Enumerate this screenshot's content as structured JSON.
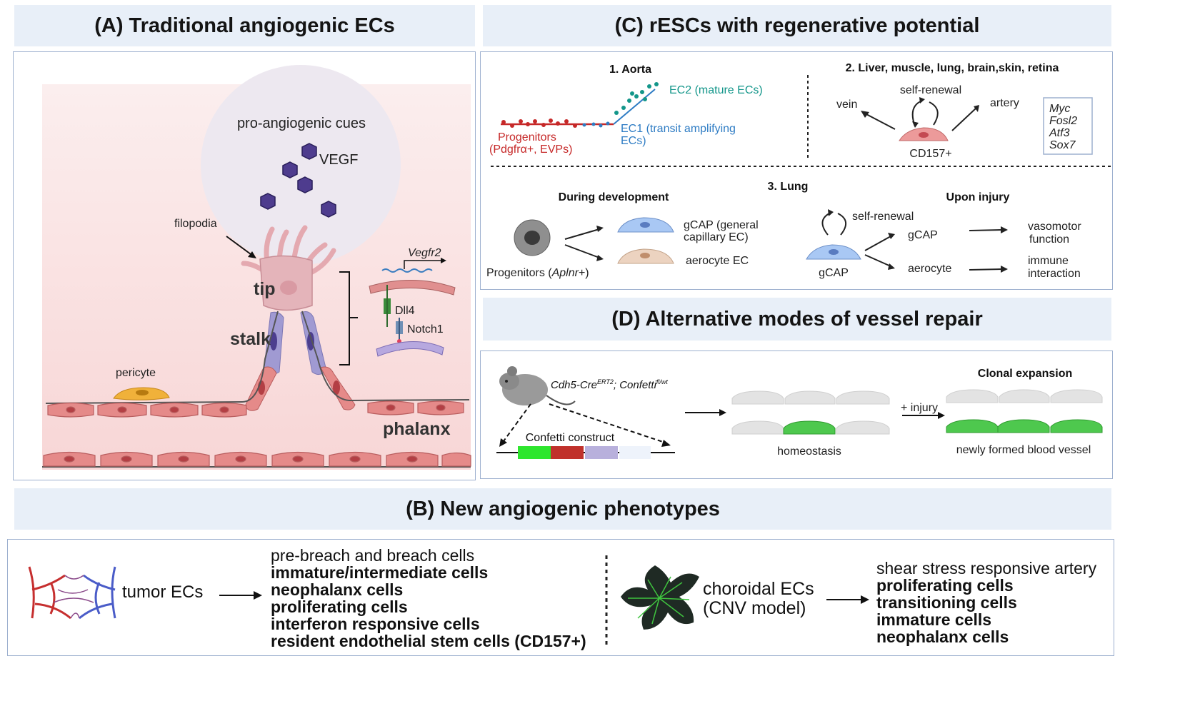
{
  "colors": {
    "header_bg": "#e8eff8",
    "box_border": "#9db0cf",
    "red_text": "#c62828",
    "blue_text": "#2e7cc4",
    "teal_text": "#13968a",
    "green": "#2ee62e",
    "pink_cell": "#e98d8c"
  },
  "panelA": {
    "title": "(A) Traditional angiogenic ECs",
    "cues": "pro-angiogenic cues",
    "vegf": "VEGF",
    "filopodia": "filopodia",
    "tip": "tip",
    "stalk": "stalk",
    "pericyte": "pericyte",
    "phalanx": "phalanx",
    "vegfr2": "Vegfr2",
    "dll4": "Dll4",
    "notch1": "Notch1"
  },
  "panelB": {
    "title": "(B) New angiogenic phenotypes",
    "left_label": "tumor ECs",
    "left_items": [
      "pre-breach and breach cells",
      "immature/intermediate cells",
      "neophalanx cells",
      "proliferating cells",
      "interferon responsive cells",
      "resident endothelial stem cells (CD157+)"
    ],
    "right_label_1": "choroidal ECs",
    "right_label_2": "(CNV model)",
    "right_items": [
      "shear stress responsive artery",
      "proliferating cells",
      "transitioning cells",
      "immature cells",
      "neophalanx cells"
    ]
  },
  "panelC": {
    "title": "(C) rESCs with regenerative potential",
    "aorta_title": "1.  Aorta",
    "ec2": "EC2 (mature ECs)",
    "ec1_l1": "EC1 (transit amplifying",
    "ec1_l2": "ECs)",
    "prog_l1": "Progenitors",
    "prog_l2": "(Pdgfrα+, EVPs)",
    "liver_title": "2. Liver, muscle, lung, brain,skin, retina",
    "self_renewal": "self-renewal",
    "vein": "vein",
    "artery": "artery",
    "cd157": "CD157+",
    "genes": [
      "Myc",
      "Fosl2",
      "Atf3",
      "Sox7"
    ],
    "lung_title": "3. Lung",
    "during_dev": "During development",
    "upon_injury": "Upon injury",
    "gcap_general_l1": "gCAP (general",
    "gcap_general_l2": "capillary  EC)",
    "aerocyte_ec": "aerocyte EC",
    "progenitors_prefix": "Progenitors (",
    "progenitors_gene": "Aplnr",
    "progenitors_suffix": "+)",
    "self_renewal_2": "self-renewal",
    "gcap": "gCAP",
    "gcap_bottom": "gCAP",
    "aerocyte": "aerocyte",
    "vasomotor_l1": "vasomotor",
    "vasomotor_l2": "function",
    "immune_l1": "immune",
    "immune_l2": "interaction"
  },
  "panelD": {
    "title": "(D) Alternative modes of vessel repair",
    "genotype_a": "Cdh5-Cre",
    "genotype_a_sup": "ERT2",
    "genotype_b": "; Confetti",
    "genotype_b_sup": "fl/wt",
    "construct": "Confetti construct",
    "homeostasis": "homeostasis",
    "injury": "+ injury",
    "clonal": "Clonal expansion",
    "new_vessel": "newly formed blood vessel"
  }
}
